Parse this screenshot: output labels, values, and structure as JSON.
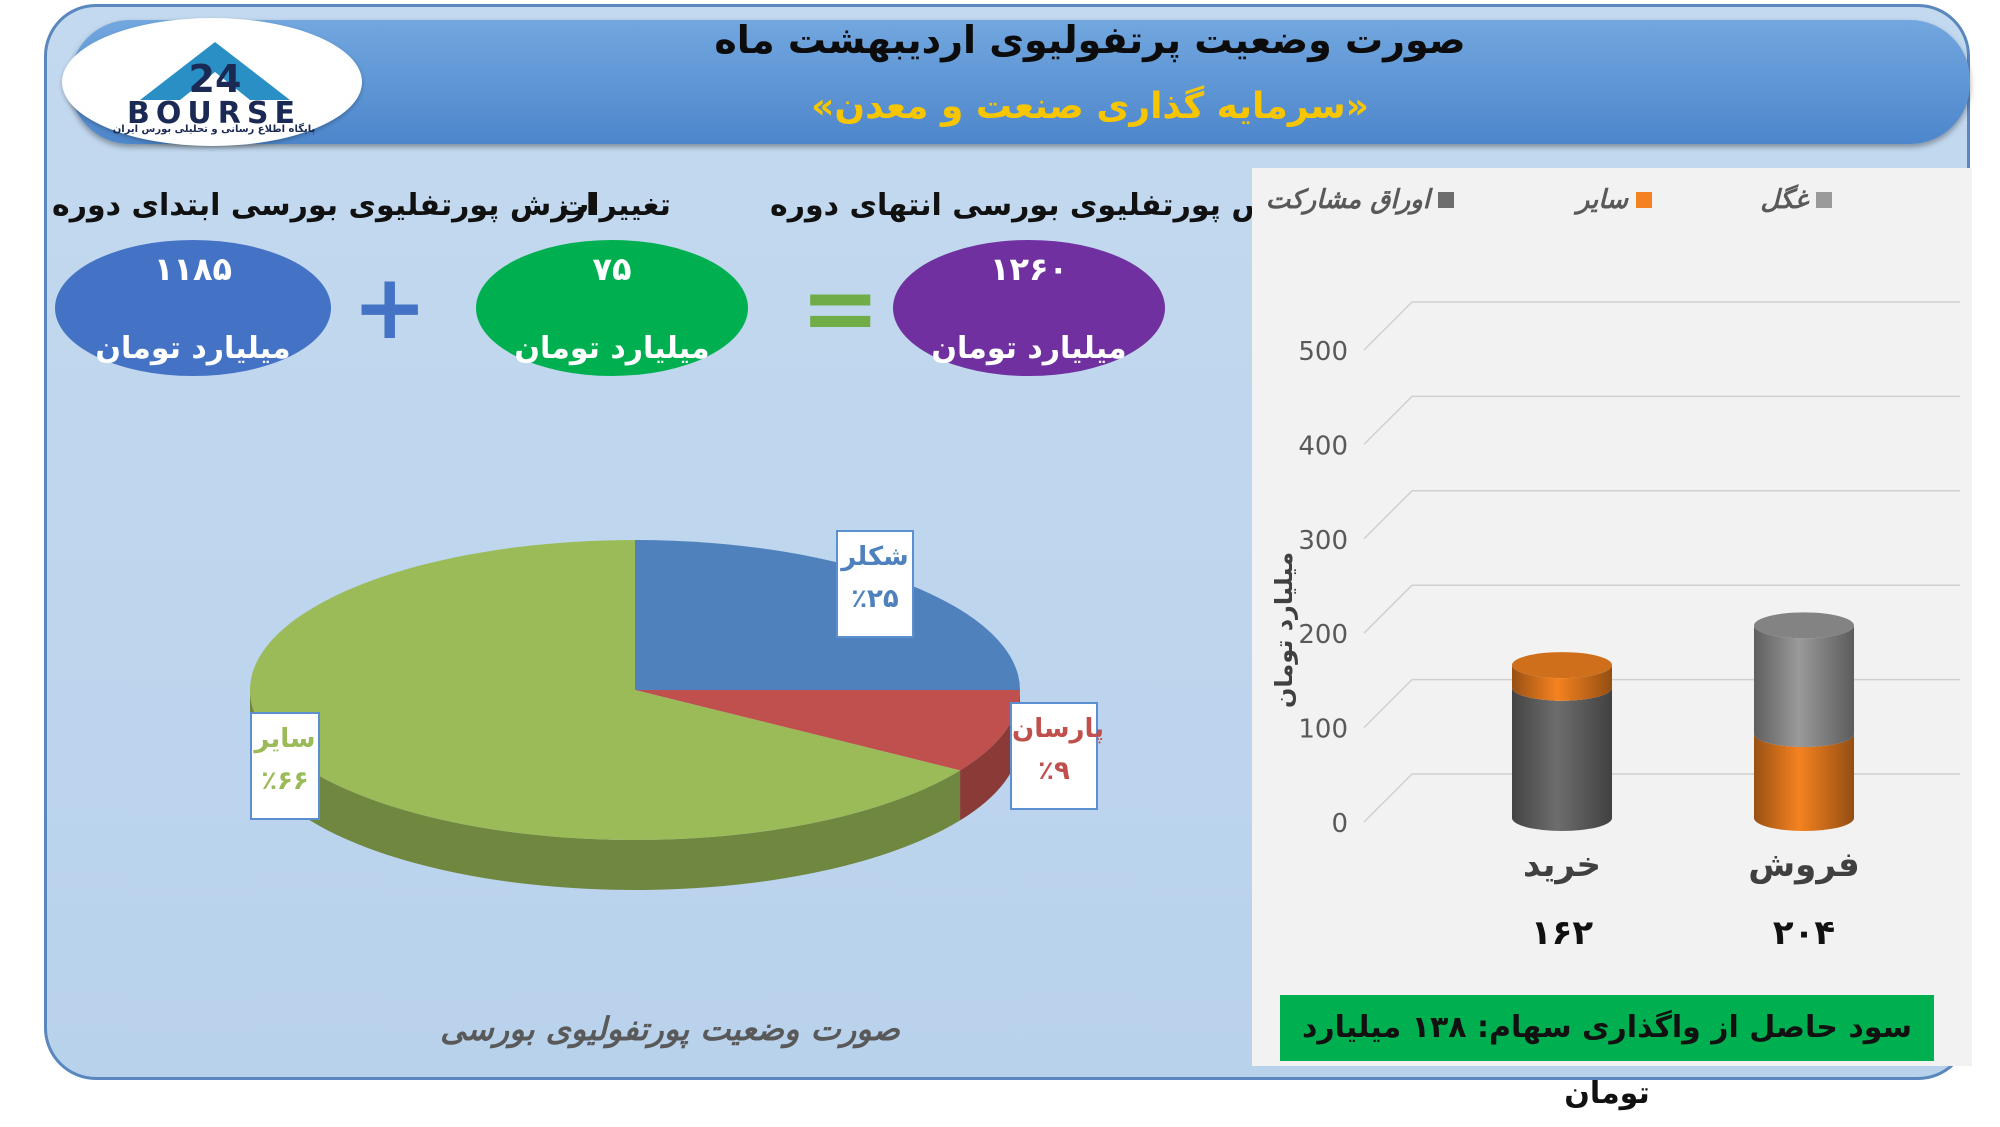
{
  "header": {
    "title": "صورت وضعیت پرتفولیوی اردیبهشت ماه",
    "subtitle": "«سرمایه گذاری صنعت و معدن»"
  },
  "logo": {
    "text": "BOURSE",
    "number": "24",
    "tagline": "پایگاه اطلاع رسانی و تحلیلی بورس ایران"
  },
  "summary": {
    "start_label": "ارزش پورتفلیوی بورسی ابتدای دوره",
    "start_value": "۱۱۸۵",
    "change_label": "تغییرات",
    "change_value": "۷۵",
    "end_label": "ارزش پورتفلیوی بورسی انتهای دوره",
    "end_value": "۱۲۶۰",
    "unit": "میلیارد تومان",
    "plus": "+",
    "equals": "="
  },
  "profit_text": "سود حاصل از واگذاری سهام: ۱۳۸ میلیارد تومان",
  "colors": {
    "blue_ellipse": "#4472c4",
    "green_ellipse": "#00b050",
    "purple_ellipse": "#7030a0",
    "pie_blue": "#4f81bd",
    "pie_red": "#c0504d",
    "pie_green": "#9bbb59",
    "bar_gray": "#8c8c8c",
    "bar_orange": "#f58220"
  },
  "chart_data": [
    {
      "type": "pie",
      "title": "صورت وضعیت پورتفولیوی بورسی",
      "slices": [
        {
          "label": "شکلر",
          "value": 25,
          "value_label": "٪۲۵",
          "color": "#4f81bd"
        },
        {
          "label": "پارسان",
          "value": 9,
          "value_label": "٪۹",
          "color": "#c0504d"
        },
        {
          "label": "سایر",
          "value": 66,
          "value_label": "٪۶۶",
          "color": "#9bbb59"
        }
      ]
    },
    {
      "type": "bar",
      "stacked": true,
      "ylabel": "میلیارد تومان",
      "ylim": [
        0,
        500
      ],
      "yticks": [
        0,
        100,
        200,
        300,
        400,
        500
      ],
      "categories": [
        "خرید",
        "فروش"
      ],
      "totals_labels": [
        "۱۶۲",
        "۲۰۴"
      ],
      "legend": [
        "غگل",
        "سایر",
        "اوراق مشارکت"
      ],
      "series": [
        {
          "name": "اوراق مشارکت",
          "color": "#6d6d6d",
          "values": [
            138,
            0
          ]
        },
        {
          "name": "سایر",
          "color": "#f58220",
          "values": [
            24,
            89
          ]
        },
        {
          "name": "غگل",
          "color": "#9a9a9a",
          "values": [
            0,
            115
          ]
        }
      ],
      "grid": true
    }
  ]
}
